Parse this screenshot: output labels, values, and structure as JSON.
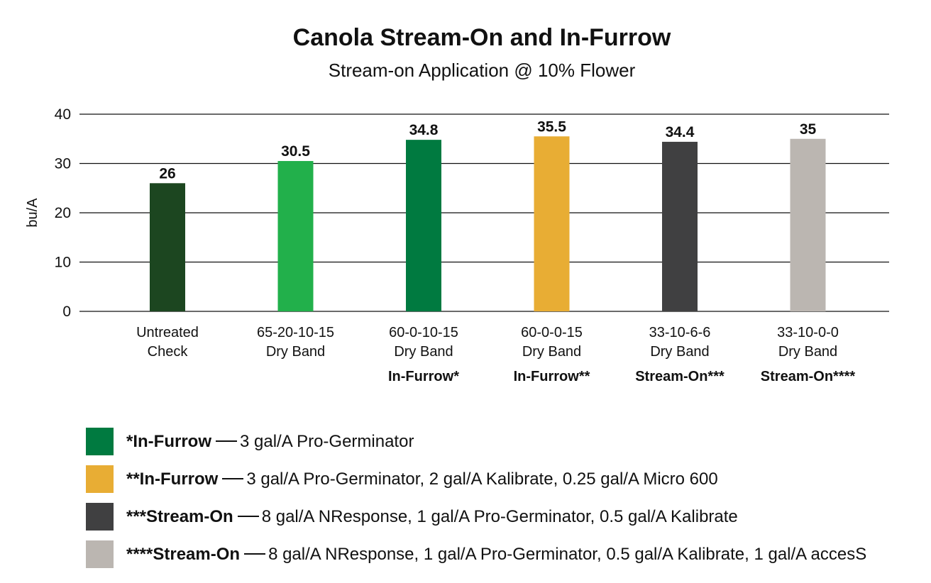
{
  "chart_data": {
    "type": "bar",
    "title": "Canola Stream-On and In-Furrow",
    "subtitle": "Stream-on Application @ 10% Flower",
    "ylabel": "bu/A",
    "xlabel": "",
    "ylim": [
      0,
      40
    ],
    "yticks": [
      0,
      10,
      20,
      30,
      40
    ],
    "grid": true,
    "categories": [
      {
        "line1": "Untreated",
        "line2": "Check",
        "line3": ""
      },
      {
        "line1": "65-20-10-15",
        "line2": "Dry Band",
        "line3": ""
      },
      {
        "line1": "60-0-10-15",
        "line2": "Dry Band",
        "line3": "In-Furrow*"
      },
      {
        "line1": "60-0-0-15",
        "line2": "Dry Band",
        "line3": "In-Furrow**"
      },
      {
        "line1": "33-10-6-6",
        "line2": "Dry Band",
        "line3": "Stream-On***"
      },
      {
        "line1": "33-10-0-0",
        "line2": "Dry Band",
        "line3": "Stream-On****"
      }
    ],
    "values": [
      26,
      30.5,
      34.8,
      35.5,
      34.4,
      35
    ],
    "data_labels": [
      "26",
      "30.5",
      "34.8",
      "35.5",
      "34.4",
      "35"
    ],
    "colors": [
      "#1c4620",
      "#22b04b",
      "#007a40",
      "#e8ad34",
      "#404041",
      "#bbb6b1"
    ]
  },
  "legend": [
    {
      "key": "*In-Furrow",
      "text": "3 gal/A Pro-Germinator",
      "color": "#007a40"
    },
    {
      "key": "**In-Furrow",
      "text": "3 gal/A Pro-Germinator, 2 gal/A Kalibrate, 0.25 gal/A Micro 600",
      "color": "#e8ad34"
    },
    {
      "key": "***Stream-On",
      "text": "8 gal/A NResponse, 1 gal/A Pro-Germinator, 0.5 gal/A Kalibrate",
      "color": "#404041"
    },
    {
      "key": "****Stream-On",
      "text": "8 gal/A NResponse, 1 gal/A Pro-Germinator, 0.5 gal/A Kalibrate, 1 gal/A accesS",
      "color": "#bbb6b1"
    }
  ]
}
